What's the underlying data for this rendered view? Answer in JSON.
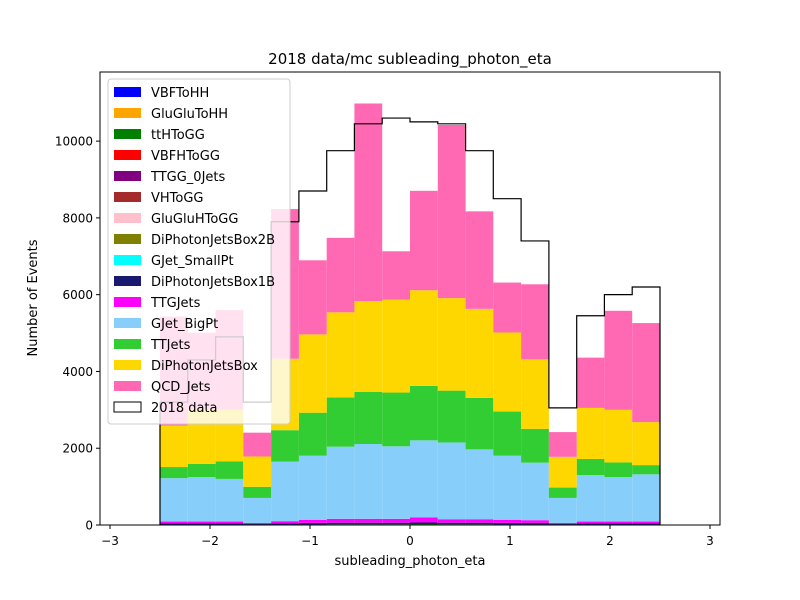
{
  "chart_data": {
    "type": "bar",
    "stacked": true,
    "title": "2018 data/mc subleading_photon_eta",
    "xlabel": "subleading_photon_eta",
    "ylabel": "Number of Events",
    "xlim": [
      -3.1,
      3.1
    ],
    "ylim": [
      0,
      11800
    ],
    "xticks": [
      -3,
      -2,
      -1,
      0,
      1,
      2,
      3
    ],
    "yticks": [
      0,
      2000,
      4000,
      6000,
      8000,
      10000
    ],
    "grid": false,
    "legend_position": "top-left",
    "bin_edges": [
      -2.5,
      -2.222,
      -1.944,
      -1.667,
      -1.389,
      -1.111,
      -0.833,
      -0.556,
      -0.278,
      0.0,
      0.278,
      0.556,
      0.833,
      1.111,
      1.389,
      1.667,
      1.944,
      2.222,
      2.5
    ],
    "series": [
      {
        "name": "VBFToHH",
        "color": "#0000ff",
        "values": [
          0,
          0,
          0,
          0,
          0,
          0,
          0,
          0,
          0,
          0,
          0,
          0,
          0,
          0,
          0,
          0,
          0,
          0
        ]
      },
      {
        "name": "GluGluToHH",
        "color": "#ffa500",
        "values": [
          0,
          0,
          0,
          0,
          0,
          0,
          0,
          0,
          0,
          0,
          0,
          0,
          0,
          0,
          0,
          0,
          0,
          0
        ]
      },
      {
        "name": "ttHToGG",
        "color": "#008000",
        "values": [
          10,
          10,
          10,
          5,
          10,
          15,
          20,
          20,
          20,
          25,
          20,
          20,
          15,
          15,
          5,
          10,
          10,
          10
        ]
      },
      {
        "name": "VBFHToGG",
        "color": "#ff0000",
        "values": [
          0,
          0,
          0,
          0,
          0,
          0,
          0,
          0,
          0,
          0,
          0,
          0,
          0,
          0,
          0,
          0,
          0,
          0
        ]
      },
      {
        "name": "TTGG_0Jets",
        "color": "#800080",
        "values": [
          0,
          0,
          0,
          0,
          0,
          0,
          0,
          0,
          0,
          0,
          0,
          0,
          0,
          0,
          0,
          0,
          0,
          0
        ]
      },
      {
        "name": "VHToGG",
        "color": "#a52a2a",
        "values": [
          0,
          0,
          0,
          0,
          0,
          0,
          0,
          0,
          0,
          0,
          0,
          0,
          0,
          0,
          0,
          0,
          0,
          0
        ]
      },
      {
        "name": "GluGluHToGG",
        "color": "#ffc0cb",
        "values": [
          0,
          0,
          0,
          0,
          0,
          0,
          0,
          0,
          0,
          0,
          0,
          0,
          0,
          0,
          0,
          0,
          0,
          0
        ]
      },
      {
        "name": "DiPhotonJetsBox2B",
        "color": "#808000",
        "values": [
          0,
          0,
          0,
          0,
          0,
          0,
          0,
          0,
          0,
          0,
          0,
          0,
          0,
          0,
          0,
          0,
          0,
          0
        ]
      },
      {
        "name": "GJet_SmallPt",
        "color": "#00ffff",
        "values": [
          0,
          0,
          0,
          0,
          0,
          0,
          0,
          0,
          0,
          0,
          0,
          0,
          0,
          0,
          0,
          0,
          0,
          0
        ]
      },
      {
        "name": "DiPhotonJetsBox1B",
        "color": "#191970",
        "values": [
          30,
          30,
          30,
          20,
          30,
          40,
          40,
          40,
          40,
          40,
          40,
          40,
          40,
          40,
          20,
          30,
          30,
          30
        ]
      },
      {
        "name": "TTGJets",
        "color": "#ff00ff",
        "values": [
          50,
          50,
          50,
          30,
          60,
          80,
          100,
          100,
          100,
          130,
          90,
          90,
          80,
          70,
          30,
          50,
          50,
          50
        ]
      },
      {
        "name": "GJet_BigPt",
        "color": "#87cefa",
        "values": [
          1130,
          1160,
          1110,
          650,
          1550,
          1670,
          1880,
          1950,
          1890,
          2010,
          2000,
          1820,
          1670,
          1500,
          650,
          1210,
          1160,
          1230
        ]
      },
      {
        "name": "TTJets",
        "color": "#32cd32",
        "values": [
          290,
          340,
          460,
          290,
          820,
          1120,
          1280,
          1360,
          1400,
          1420,
          1350,
          1340,
          1150,
          880,
          270,
          420,
          380,
          240
        ]
      },
      {
        "name": "DiPhotonJetsBox",
        "color": "#ffd700",
        "values": [
          1080,
          1420,
          1340,
          790,
          1860,
          2040,
          2220,
          2360,
          2420,
          2490,
          2410,
          2320,
          2060,
          1810,
          800,
          1330,
          1370,
          1120
        ]
      },
      {
        "name": "QCD_Jets",
        "color": "#ff69b4",
        "values": [
          2840,
          2000,
          2600,
          620,
          3900,
          1930,
          1940,
          5150,
          1260,
          2590,
          4510,
          2540,
          1300,
          1955,
          645,
          1310,
          2580,
          2580
        ]
      }
    ],
    "data": {
      "name": "2018 data",
      "color": "#000000",
      "values": [
        3200,
        4300,
        4900,
        3200,
        7900,
        8700,
        9750,
        10450,
        10600,
        10500,
        10450,
        9750,
        8500,
        7400,
        3050,
        5450,
        6000,
        6200
      ]
    }
  }
}
